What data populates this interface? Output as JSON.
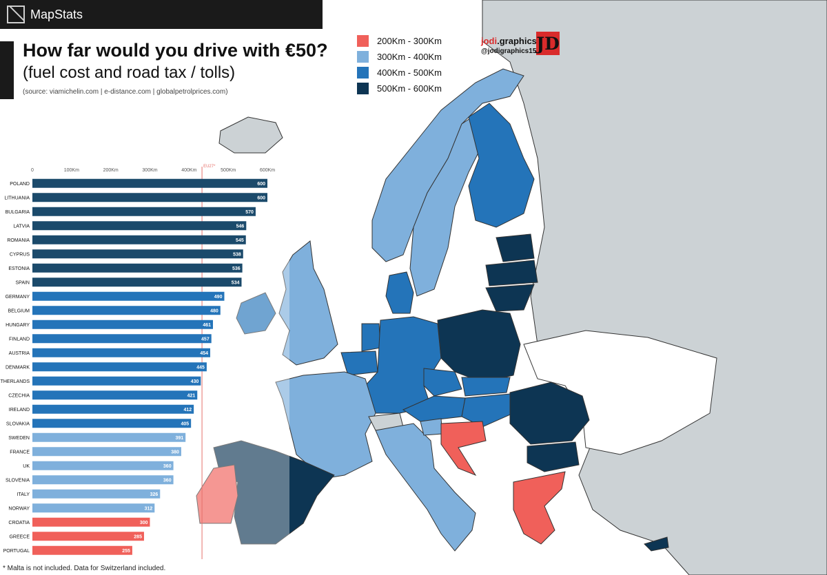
{
  "brand": {
    "name": "MapStats",
    "logo_icon": "mapstats-logo-icon"
  },
  "header": {
    "title": "How far would you drive with €50?",
    "subtitle": "(fuel cost and road tax / tolls)",
    "source": "(source: viamichelin.com | e-distance.com | globalpetrolprices.com)"
  },
  "legend": [
    {
      "label": "200Km - 300Km",
      "color": "#f0605a"
    },
    {
      "label": "300Km - 400Km",
      "color": "#7fb0dc"
    },
    {
      "label": "400Km - 500Km",
      "color": "#2474b9"
    },
    {
      "label": "500Km - 600Km",
      "color": "#0d3553"
    }
  ],
  "credit": {
    "name_a": "jodi",
    "name_b": ".graphics",
    "handle": "@jodigraphics15",
    "logo_text": "JD"
  },
  "footnote": "* Malta is not included. Data for Switzerland included.",
  "colors": {
    "background": "#f4f1ea",
    "land_other": "#ccd2d5",
    "sea": "#ffffff",
    "eu_avg_line": "#e6706a"
  },
  "chart_data": {
    "type": "bar",
    "orientation": "horizontal",
    "categories": [
      "POLAND",
      "LITHUANIA",
      "BULGARIA",
      "LATVIA",
      "ROMANIA",
      "CYPRUS",
      "ESTONIA",
      "SPAIN",
      "GERMANY",
      "BELGIUM",
      "HUNGARY",
      "FINLAND",
      "AUSTRIA",
      "DENMARK",
      "NETHERLANDS",
      "CZECHIA",
      "IRELAND",
      "SLOVAKIA",
      "SWEDEN",
      "FRANCE",
      "UK",
      "SLOVENIA",
      "ITALY",
      "NORWAY",
      "CROATIA",
      "GREECE",
      "PORTUGAL"
    ],
    "values": [
      600,
      600,
      570,
      546,
      545,
      538,
      536,
      534,
      490,
      480,
      461,
      457,
      454,
      445,
      430,
      421,
      412,
      405,
      391,
      380,
      360,
      360,
      326,
      312,
      300,
      285,
      255
    ],
    "xlim": [
      0,
      600
    ],
    "x_ticks": [
      0,
      100,
      200,
      300,
      400,
      500,
      600
    ],
    "x_tick_labels": [
      "0",
      "100Km",
      "200Km",
      "300Km",
      "400Km",
      "500Km",
      "600Km"
    ],
    "reference_line": {
      "label": "EU27*",
      "value": 433
    },
    "bins": [
      {
        "min": 200,
        "max": 300,
        "color": "#f0605a"
      },
      {
        "min": 300,
        "max": 400,
        "color": "#7fb0dc"
      },
      {
        "min": 400,
        "max": 500,
        "color": "#2474b9"
      },
      {
        "min": 500,
        "max": 600,
        "color": "#1b4a6b"
      }
    ]
  },
  "map_data": {
    "type": "choropleth",
    "regions": [
      {
        "name": "Poland",
        "value": 600,
        "color": "#0d3553"
      },
      {
        "name": "Lithuania",
        "value": 600,
        "color": "#0d3553"
      },
      {
        "name": "Bulgaria",
        "value": 570,
        "color": "#0d3553"
      },
      {
        "name": "Latvia",
        "value": 546,
        "color": "#0d3553"
      },
      {
        "name": "Romania",
        "value": 545,
        "color": "#0d3553"
      },
      {
        "name": "Cyprus",
        "value": 538,
        "color": "#0d3553"
      },
      {
        "name": "Estonia",
        "value": 536,
        "color": "#0d3553"
      },
      {
        "name": "Spain",
        "value": 534,
        "color": "#0d3553"
      },
      {
        "name": "Germany",
        "value": 490,
        "color": "#2474b9"
      },
      {
        "name": "Belgium",
        "value": 480,
        "color": "#2474b9"
      },
      {
        "name": "Hungary",
        "value": 461,
        "color": "#2474b9"
      },
      {
        "name": "Finland",
        "value": 457,
        "color": "#2474b9"
      },
      {
        "name": "Austria",
        "value": 454,
        "color": "#2474b9"
      },
      {
        "name": "Denmark",
        "value": 445,
        "color": "#2474b9"
      },
      {
        "name": "Netherlands",
        "value": 430,
        "color": "#2474b9"
      },
      {
        "name": "Czechia",
        "value": 421,
        "color": "#2474b9"
      },
      {
        "name": "Ireland",
        "value": 412,
        "color": "#2474b9"
      },
      {
        "name": "Slovakia",
        "value": 405,
        "color": "#2474b9"
      },
      {
        "name": "Sweden",
        "value": 391,
        "color": "#7fb0dc"
      },
      {
        "name": "France",
        "value": 380,
        "color": "#7fb0dc"
      },
      {
        "name": "UK",
        "value": 360,
        "color": "#7fb0dc"
      },
      {
        "name": "Slovenia",
        "value": 360,
        "color": "#7fb0dc"
      },
      {
        "name": "Italy",
        "value": 326,
        "color": "#7fb0dc"
      },
      {
        "name": "Norway",
        "value": 312,
        "color": "#7fb0dc"
      },
      {
        "name": "Croatia",
        "value": 300,
        "color": "#f0605a"
      },
      {
        "name": "Greece",
        "value": 285,
        "color": "#f0605a"
      },
      {
        "name": "Portugal",
        "value": 255,
        "color": "#f0605a"
      },
      {
        "name": "Other",
        "color": "#ccd2d5"
      }
    ]
  }
}
